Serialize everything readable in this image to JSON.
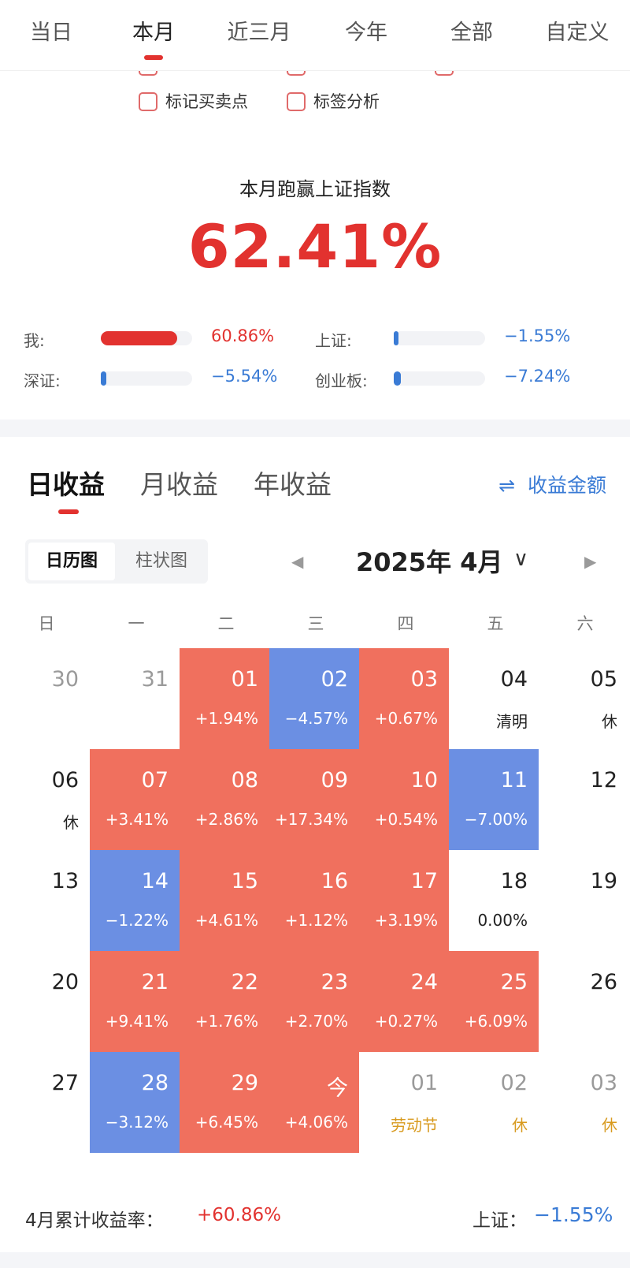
{
  "period_tabs": [
    {
      "label": "当日",
      "active": false
    },
    {
      "label": "本月",
      "active": true
    },
    {
      "label": "近三月",
      "active": false
    },
    {
      "label": "今年",
      "active": false
    },
    {
      "label": "全部",
      "active": false
    },
    {
      "label": "自定义",
      "active": false
    }
  ],
  "options": [
    {
      "label": "标记买卖点",
      "checked": false
    },
    {
      "label": "标签分析",
      "checked": false
    }
  ],
  "beat": {
    "title": "本月跑赢上证指数",
    "value": "62.41%"
  },
  "comparison": [
    {
      "label": "我:",
      "value": "60.86%",
      "fraction": 0.84,
      "color": "#e2322f"
    },
    {
      "label": "上证:",
      "value": "−1.55%",
      "fraction": 0.02,
      "color": "#3a7bd5"
    },
    {
      "label": "深证:",
      "value": "−5.54%",
      "fraction": 0.06,
      "color": "#3a7bd5"
    },
    {
      "label": "创业板:",
      "value": "−7.24%",
      "fraction": 0.08,
      "color": "#3a7bd5"
    }
  ],
  "returns_tabs": [
    {
      "label": "日收益",
      "active": true
    },
    {
      "label": "月收益",
      "active": false
    },
    {
      "label": "年收益",
      "active": false
    }
  ],
  "amount_toggle": {
    "icon": "swap-icon",
    "icon_glyph": "⇌",
    "label": "收益金额"
  },
  "view_toggle": [
    {
      "label": "日历图",
      "active": true
    },
    {
      "label": "柱状图",
      "active": false
    }
  ],
  "month_nav": {
    "label": "2025年 4月",
    "prev_glyph": "◀",
    "next_glyph": "▶",
    "dropdown_glyph": "∨"
  },
  "weekdays": [
    "日",
    "一",
    "二",
    "三",
    "四",
    "五",
    "六"
  ],
  "calendar": [
    [
      {
        "day": "30",
        "sub": "",
        "kind": "other"
      },
      {
        "day": "31",
        "sub": "",
        "kind": "other"
      },
      {
        "day": "01",
        "sub": "+1.94%",
        "kind": "up"
      },
      {
        "day": "02",
        "sub": "−4.57%",
        "kind": "down"
      },
      {
        "day": "03",
        "sub": "+0.67%",
        "kind": "up"
      },
      {
        "day": "04",
        "sub": "清明",
        "kind": "holiday"
      },
      {
        "day": "05",
        "sub": "休",
        "kind": "holiday"
      }
    ],
    [
      {
        "day": "06",
        "sub": "休",
        "kind": "holiday"
      },
      {
        "day": "07",
        "sub": "+3.41%",
        "kind": "up"
      },
      {
        "day": "08",
        "sub": "+2.86%",
        "kind": "up"
      },
      {
        "day": "09",
        "sub": "+17.34%",
        "kind": "up"
      },
      {
        "day": "10",
        "sub": "+0.54%",
        "kind": "up"
      },
      {
        "day": "11",
        "sub": "−7.00%",
        "kind": "down"
      },
      {
        "day": "12",
        "sub": "",
        "kind": "plain"
      }
    ],
    [
      {
        "day": "13",
        "sub": "",
        "kind": "plain"
      },
      {
        "day": "14",
        "sub": "−1.22%",
        "kind": "down"
      },
      {
        "day": "15",
        "sub": "+4.61%",
        "kind": "up"
      },
      {
        "day": "16",
        "sub": "+1.12%",
        "kind": "up"
      },
      {
        "day": "17",
        "sub": "+3.19%",
        "kind": "up"
      },
      {
        "day": "18",
        "sub": "0.00%",
        "kind": "plain"
      },
      {
        "day": "19",
        "sub": "",
        "kind": "plain"
      }
    ],
    [
      {
        "day": "20",
        "sub": "",
        "kind": "plain"
      },
      {
        "day": "21",
        "sub": "+9.41%",
        "kind": "up"
      },
      {
        "day": "22",
        "sub": "+1.76%",
        "kind": "up"
      },
      {
        "day": "23",
        "sub": "+2.70%",
        "kind": "up"
      },
      {
        "day": "24",
        "sub": "+0.27%",
        "kind": "up"
      },
      {
        "day": "25",
        "sub": "+6.09%",
        "kind": "up"
      },
      {
        "day": "26",
        "sub": "",
        "kind": "plain"
      }
    ],
    [
      {
        "day": "27",
        "sub": "",
        "kind": "plain"
      },
      {
        "day": "28",
        "sub": "−3.12%",
        "kind": "down"
      },
      {
        "day": "29",
        "sub": "+6.45%",
        "kind": "up"
      },
      {
        "day": "今",
        "sub": "+4.06%",
        "kind": "up"
      },
      {
        "day": "01",
        "sub": "劳动节",
        "kind": "other-holiday"
      },
      {
        "day": "02",
        "sub": "休",
        "kind": "other-holiday"
      },
      {
        "day": "03",
        "sub": "休",
        "kind": "other-holiday"
      }
    ]
  ],
  "summary": {
    "label": "4月累计收益率：",
    "value": "+60.86%",
    "index_label": "上证：",
    "index_value": "−1.55%"
  },
  "colors": {
    "accent_red": "#e2322f",
    "up_cell": "#f0705e",
    "down_cell": "#6b8fe3",
    "blue_text": "#3a7bd5",
    "holiday_text": "#d89a1e"
  }
}
